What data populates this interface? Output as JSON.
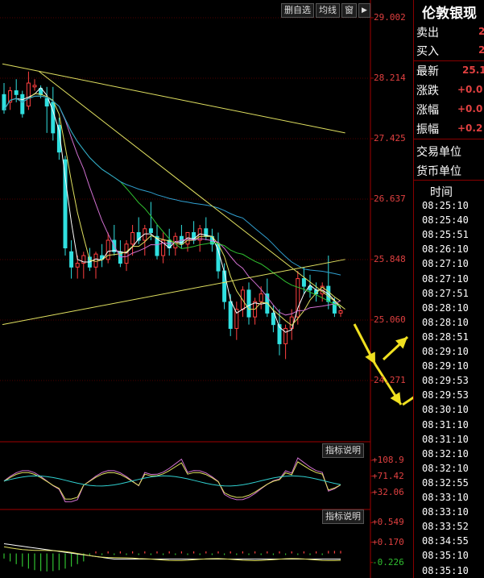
{
  "toolbar": {
    "delete_label": "删自选",
    "ma_label": "均线",
    "window_label": "窗",
    "arrow_label": "◀▶"
  },
  "chart_data": {
    "type": "candlestick",
    "price_axis": {
      "ticks": [
        "29.002",
        "28.214",
        "27.425",
        "26.637",
        "25.848",
        "25.060",
        "24.271"
      ],
      "values": [
        29.002,
        28.214,
        27.425,
        26.637,
        25.848,
        25.06,
        24.271
      ]
    },
    "candles": [
      {
        "o": 28.0,
        "h": 28.15,
        "l": 27.75,
        "c": 27.8
      },
      {
        "o": 27.9,
        "h": 28.1,
        "l": 27.8,
        "c": 28.05
      },
      {
        "o": 28.05,
        "h": 28.2,
        "l": 27.9,
        "c": 28.0
      },
      {
        "o": 28.0,
        "h": 28.05,
        "l": 27.7,
        "c": 27.75
      },
      {
        "o": 27.85,
        "h": 28.3,
        "l": 27.8,
        "c": 28.15
      },
      {
        "o": 28.1,
        "h": 28.2,
        "l": 28.05,
        "c": 28.12
      },
      {
        "o": 28.08,
        "h": 28.12,
        "l": 27.95,
        "c": 28.0
      },
      {
        "o": 27.95,
        "h": 28.1,
        "l": 27.5,
        "c": 27.85
      },
      {
        "o": 27.9,
        "h": 28.1,
        "l": 27.4,
        "c": 27.5
      },
      {
        "o": 27.6,
        "h": 27.7,
        "l": 27.15,
        "c": 27.25
      },
      {
        "o": 27.15,
        "h": 27.2,
        "l": 25.9,
        "c": 26.0
      },
      {
        "o": 25.95,
        "h": 26.1,
        "l": 25.6,
        "c": 25.75
      },
      {
        "o": 25.75,
        "h": 25.9,
        "l": 25.6,
        "c": 25.8
      },
      {
        "o": 25.8,
        "h": 25.95,
        "l": 25.6,
        "c": 25.9
      },
      {
        "o": 25.88,
        "h": 26.0,
        "l": 25.7,
        "c": 25.75
      },
      {
        "o": 25.75,
        "h": 25.95,
        "l": 25.6,
        "c": 25.92
      },
      {
        "o": 25.9,
        "h": 26.05,
        "l": 25.75,
        "c": 25.85
      },
      {
        "o": 25.85,
        "h": 26.2,
        "l": 25.8,
        "c": 26.1
      },
      {
        "o": 26.1,
        "h": 26.3,
        "l": 25.9,
        "c": 25.95
      },
      {
        "o": 25.95,
        "h": 26.1,
        "l": 25.75,
        "c": 25.8
      },
      {
        "o": 25.8,
        "h": 26.1,
        "l": 25.7,
        "c": 26.05
      },
      {
        "o": 26.05,
        "h": 26.3,
        "l": 25.9,
        "c": 26.2
      },
      {
        "o": 26.2,
        "h": 26.4,
        "l": 26.05,
        "c": 26.1
      },
      {
        "o": 26.1,
        "h": 26.3,
        "l": 25.9,
        "c": 26.25
      },
      {
        "o": 26.25,
        "h": 26.6,
        "l": 26.1,
        "c": 26.2
      },
      {
        "o": 26.15,
        "h": 26.3,
        "l": 25.85,
        "c": 25.9
      },
      {
        "o": 25.9,
        "h": 26.2,
        "l": 25.8,
        "c": 26.1
      },
      {
        "o": 26.1,
        "h": 26.25,
        "l": 25.9,
        "c": 26.0
      },
      {
        "o": 26.0,
        "h": 26.2,
        "l": 25.9,
        "c": 26.15
      },
      {
        "o": 26.15,
        "h": 26.3,
        "l": 26.0,
        "c": 26.05
      },
      {
        "o": 26.05,
        "h": 26.2,
        "l": 25.95,
        "c": 26.2
      },
      {
        "o": 26.2,
        "h": 26.35,
        "l": 26.05,
        "c": 26.1
      },
      {
        "o": 26.1,
        "h": 26.3,
        "l": 25.95,
        "c": 26.25
      },
      {
        "o": 26.25,
        "h": 26.4,
        "l": 26.1,
        "c": 26.15
      },
      {
        "o": 26.15,
        "h": 26.25,
        "l": 25.95,
        "c": 26.05
      },
      {
        "o": 26.05,
        "h": 26.2,
        "l": 25.6,
        "c": 25.7
      },
      {
        "o": 25.7,
        "h": 25.8,
        "l": 25.2,
        "c": 25.3
      },
      {
        "o": 25.3,
        "h": 25.4,
        "l": 24.85,
        "c": 24.95
      },
      {
        "o": 24.95,
        "h": 25.3,
        "l": 24.8,
        "c": 25.2
      },
      {
        "o": 25.2,
        "h": 25.5,
        "l": 25.1,
        "c": 25.45
      },
      {
        "o": 25.45,
        "h": 25.55,
        "l": 25.0,
        "c": 25.1
      },
      {
        "o": 25.1,
        "h": 25.35,
        "l": 25.0,
        "c": 25.3
      },
      {
        "o": 25.3,
        "h": 25.5,
        "l": 25.2,
        "c": 25.4
      },
      {
        "o": 25.4,
        "h": 25.6,
        "l": 25.1,
        "c": 25.15
      },
      {
        "o": 25.15,
        "h": 25.25,
        "l": 24.9,
        "c": 25.0
      },
      {
        "o": 25.0,
        "h": 25.2,
        "l": 24.6,
        "c": 24.75
      },
      {
        "o": 24.75,
        "h": 25.0,
        "l": 24.55,
        "c": 24.95
      },
      {
        "o": 24.95,
        "h": 25.2,
        "l": 24.8,
        "c": 25.1
      },
      {
        "o": 25.1,
        "h": 25.7,
        "l": 25.0,
        "c": 25.6
      },
      {
        "o": 25.6,
        "h": 25.75,
        "l": 25.4,
        "c": 25.5
      },
      {
        "o": 25.5,
        "h": 25.65,
        "l": 25.35,
        "c": 25.45
      },
      {
        "o": 25.45,
        "h": 25.55,
        "l": 25.3,
        "c": 25.4
      },
      {
        "o": 25.4,
        "h": 25.55,
        "l": 25.3,
        "c": 25.5
      },
      {
        "o": 25.5,
        "h": 25.9,
        "l": 25.2,
        "c": 25.3
      },
      {
        "o": 25.3,
        "h": 25.35,
        "l": 25.1,
        "c": 25.15
      },
      {
        "o": 25.15,
        "h": 25.2,
        "l": 25.1,
        "c": 25.18
      }
    ],
    "trendlines": [
      {
        "color": "#e0e060",
        "points": [
          [
            0,
            28.4
          ],
          [
            56,
            27.5
          ]
        ]
      },
      {
        "color": "#e0e060",
        "points": [
          [
            0,
            25.0
          ],
          [
            56,
            25.85
          ]
        ]
      },
      {
        "color": "#e0e060",
        "points": [
          [
            6,
            28.3
          ],
          [
            56,
            25.2
          ]
        ]
      }
    ],
    "ma_colors": [
      "#ffffff",
      "#e0e060",
      "#d070d0",
      "#30c030",
      "#30a0d0"
    ],
    "arrows_color": "#f0e020",
    "osc1": {
      "labels": [
        "+108.9",
        "+71.42",
        "+32.06"
      ],
      "values": [
        108.9,
        71.42,
        32.06
      ],
      "label_colors": [
        "#e04040",
        "#e04040",
        "#e04040"
      ]
    },
    "osc2": {
      "labels": [
        "+0.549",
        "+0.170",
        "-0.226"
      ],
      "values": [
        0.549,
        0.17,
        -0.226
      ],
      "label_colors": [
        "#e04040",
        "#e04040",
        "#30c030"
      ]
    }
  },
  "indicator_help": "指标说明",
  "quote": {
    "title": "伦敦银现",
    "rows": [
      {
        "label": "卖出",
        "value": "2",
        "color": "#e04040"
      },
      {
        "label": "买入",
        "value": "2",
        "color": "#e04040"
      },
      {
        "label": "最新",
        "value": "25.1",
        "color": "#e04040"
      },
      {
        "label": "涨跌",
        "value": "+0.0",
        "color": "#e04040"
      },
      {
        "label": "涨幅",
        "value": "+0.0",
        "color": "#e04040"
      },
      {
        "label": "振幅",
        "value": "+0.2",
        "color": "#e04040"
      },
      {
        "label": "交易单位",
        "value": "",
        "color": "#fff"
      },
      {
        "label": "货币单位",
        "value": "",
        "color": "#fff"
      }
    ],
    "time_header": "时间",
    "times": [
      "08:25:10",
      "08:25:40",
      "08:25:51",
      "08:26:10",
      "08:27:10",
      "08:27:10",
      "08:27:51",
      "08:28:10",
      "08:28:10",
      "08:28:51",
      "08:29:10",
      "08:29:10",
      "08:29:53",
      "08:29:53",
      "08:30:10",
      "08:31:10",
      "08:31:10",
      "08:32:10",
      "08:32:10",
      "08:32:55",
      "08:33:10",
      "08:33:10",
      "08:33:52",
      "08:34:55",
      "08:35:10",
      "08:35:10"
    ]
  }
}
